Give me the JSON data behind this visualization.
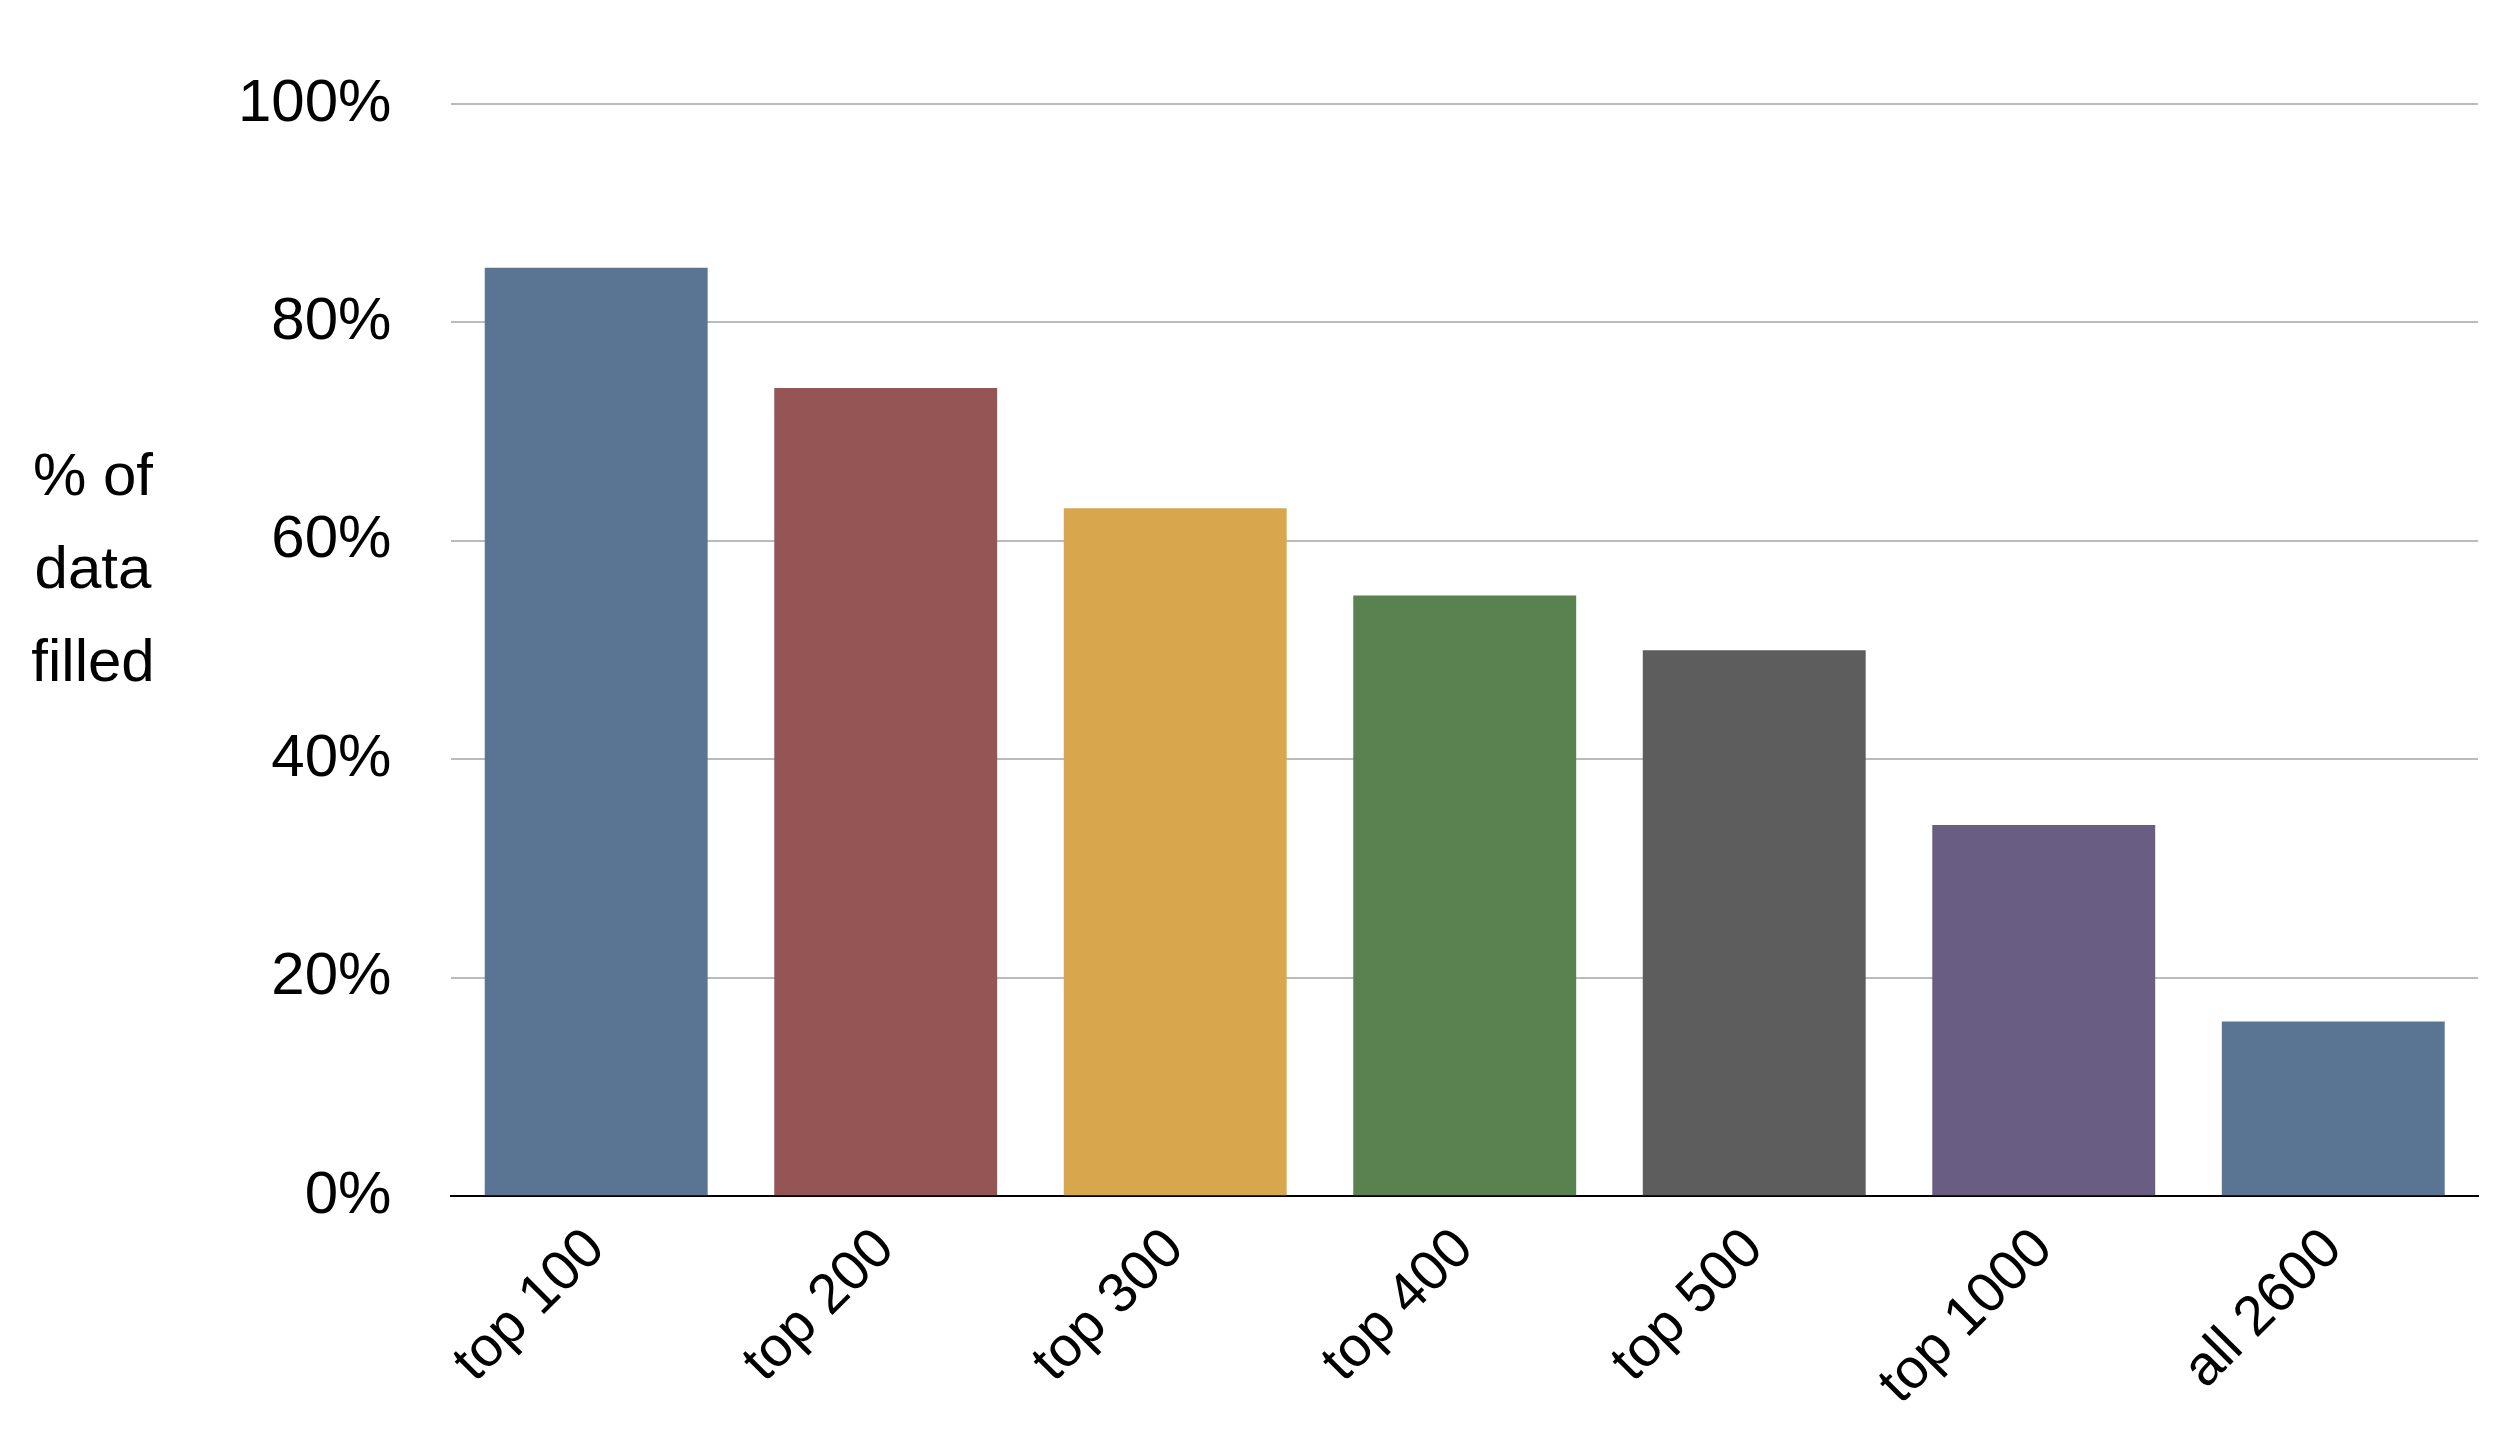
{
  "chart_data": {
    "type": "bar",
    "ylabel": "% of data filled",
    "categories": [
      "top 100",
      "top 200",
      "top 300",
      "top 400",
      "top 500",
      "top 1000",
      "all 2600"
    ],
    "values": [
      85,
      74,
      63,
      55,
      50,
      34,
      16
    ],
    "colors": [
      "#5a7594",
      "#955555",
      "#d8a64c",
      "#5a8150",
      "#5d5d5d",
      "#6a5d84",
      "#5a7594"
    ],
    "ylim": [
      0,
      100
    ],
    "yticks": [
      {
        "value": 0,
        "label": "0%"
      },
      {
        "value": 20,
        "label": "20%"
      },
      {
        "value": 40,
        "label": "40%"
      },
      {
        "value": 60,
        "label": "60%"
      },
      {
        "value": 80,
        "label": "80%"
      },
      {
        "value": 100,
        "label": "100%"
      }
    ],
    "grid": "y",
    "legend": false
  }
}
